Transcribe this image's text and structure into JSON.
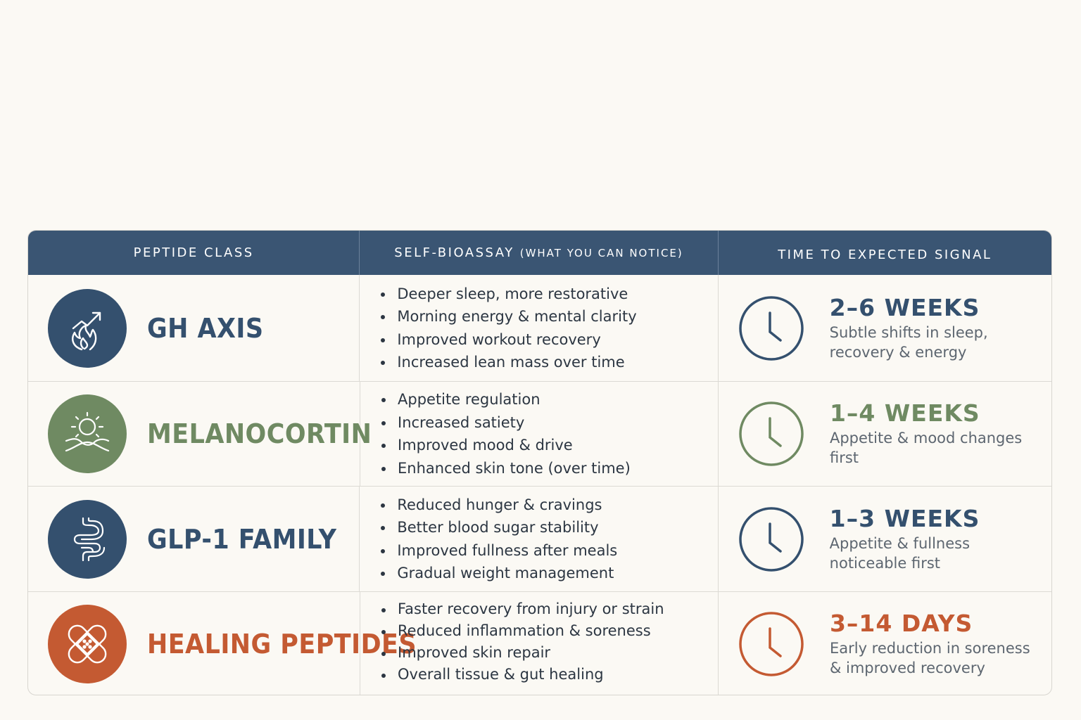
{
  "colors": {
    "navy": "#34506e",
    "green": "#6f8a62",
    "orange": "#c45a32",
    "header_bg": "#3a5573",
    "page_bg": "#fbf9f4"
  },
  "table": {
    "headers": {
      "peptide_class": "PEPTIDE CLASS",
      "self_bioassay": "SELF-BIOASSAY",
      "self_bioassay_note": "(WHAT YOU CAN NOTICE)",
      "time_to_signal": "TIME TO EXPECTED SIGNAL"
    },
    "rows": [
      {
        "name": "GH AXIS",
        "icon": "growth-flame-icon",
        "color": "#34506e",
        "bullets": [
          "Deeper sleep, more restorative",
          "Morning energy & mental clarity",
          "Improved workout recovery",
          "Increased lean mass over time"
        ],
        "period": "2–6 WEEKS",
        "note": "Subtle shifts in sleep, recovery & energy"
      },
      {
        "name": "MELANOCORTIN",
        "icon": "sun-wave-icon",
        "color": "#6f8a62",
        "bullets": [
          "Appetite regulation",
          "Increased satiety",
          "Improved mood & drive",
          "Enhanced skin tone (over time)"
        ],
        "period": "1–4 WEEKS",
        "note": "Appetite & mood changes first"
      },
      {
        "name": "GLP-1 FAMILY",
        "icon": "intestine-icon",
        "color": "#34506e",
        "bullets": [
          "Reduced hunger & cravings",
          "Better blood sugar stability",
          "Improved fullness after meals",
          "Gradual weight management"
        ],
        "period": "1–3 WEEKS",
        "note": "Appetite & fullness noticeable first"
      },
      {
        "name": "HEALING PEPTIDES",
        "icon": "bandage-icon",
        "color": "#c45a32",
        "bullets": [
          "Faster recovery from injury or strain",
          "Reduced inflammation & soreness",
          "Improved skin repair",
          "Overall tissue & gut healing"
        ],
        "period": "3–14 DAYS",
        "note": "Early reduction in soreness & improved recovery"
      }
    ]
  }
}
